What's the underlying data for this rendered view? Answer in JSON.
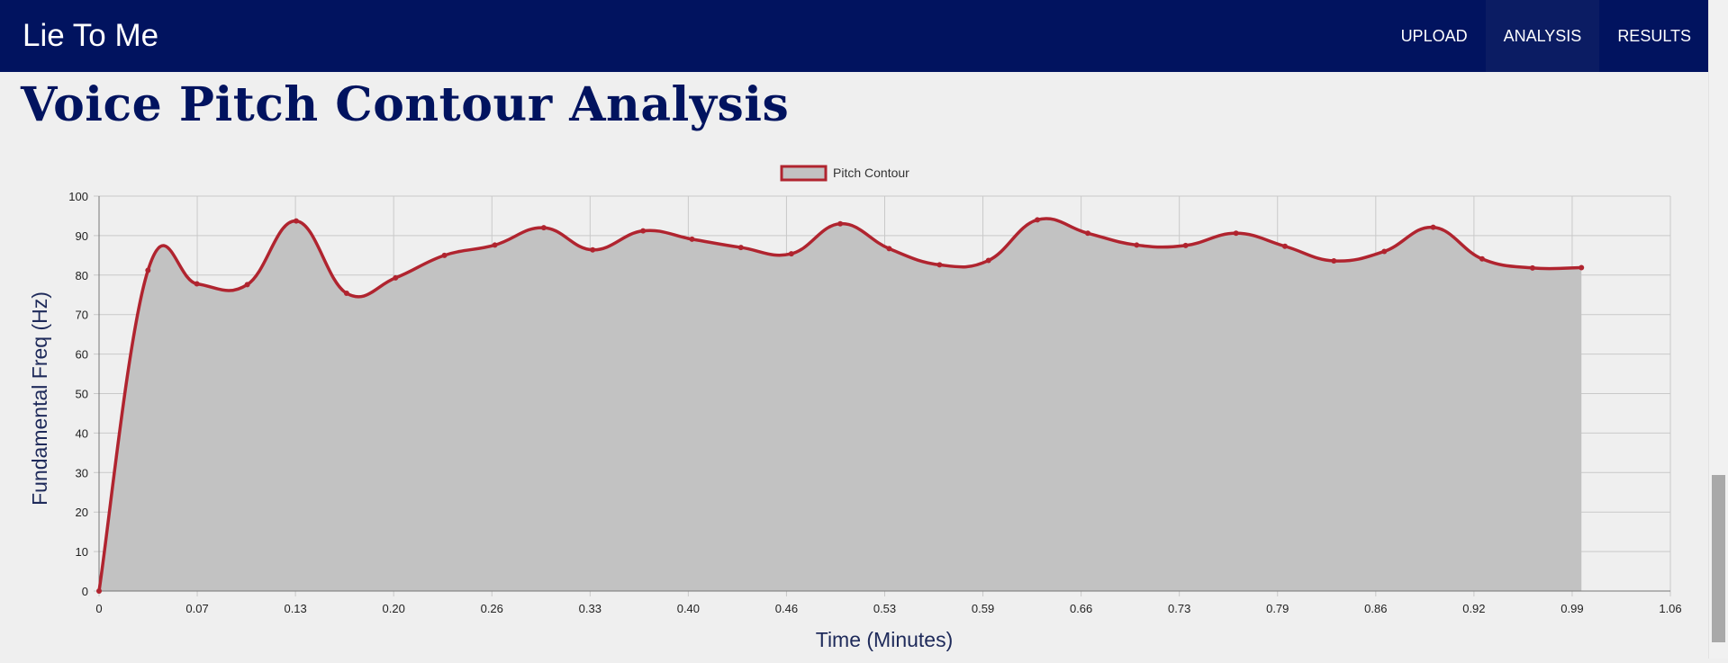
{
  "app": {
    "title": "Lie To Me"
  },
  "nav": {
    "items": [
      {
        "label": "UPLOAD",
        "active": false
      },
      {
        "label": "ANALYSIS",
        "active": true
      },
      {
        "label": "RESULTS",
        "active": false
      }
    ]
  },
  "page": {
    "title": "Voice Pitch Contour Analysis"
  },
  "colors": {
    "nav_bg": "#01135f",
    "title": "#01135f",
    "series_line": "#b0242f",
    "series_fill": "#c2c2c2"
  },
  "chart_data": {
    "type": "area",
    "legend": {
      "position": "top-center"
    },
    "xlabel": "Time (Minutes)",
    "ylabel": "Fundamental Freq (Hz)",
    "xlim": [
      0,
      1.06
    ],
    "ylim": [
      0,
      100
    ],
    "grid": true,
    "x_ticks": [
      "0",
      "0.07",
      "0.13",
      "0.20",
      "0.26",
      "0.33",
      "0.40",
      "0.46",
      "0.53",
      "0.59",
      "0.66",
      "0.73",
      "0.79",
      "0.86",
      "0.92",
      "0.99",
      "1.06"
    ],
    "y_ticks": [
      "0",
      "10",
      "20",
      "30",
      "40",
      "50",
      "60",
      "70",
      "80",
      "90",
      "100"
    ],
    "series": [
      {
        "name": "Pitch Contour",
        "x": [
          0,
          0.033,
          0.066,
          0.1,
          0.133,
          0.167,
          0.2,
          0.233,
          0.267,
          0.3,
          0.333,
          0.367,
          0.4,
          0.433,
          0.467,
          0.5,
          0.533,
          0.567,
          0.6,
          0.633,
          0.667,
          0.7,
          0.733,
          0.767,
          0.8,
          0.833,
          0.867,
          0.9,
          0.933,
          0.967,
          1.0
        ],
        "values": [
          0,
          81.2,
          77.8,
          77.6,
          93.7,
          75.4,
          79.3,
          85.0,
          87.6,
          92.0,
          86.4,
          91.2,
          89.1,
          87.0,
          85.4,
          93.0,
          86.7,
          82.6,
          83.7,
          94.0,
          90.6,
          87.6,
          87.5,
          90.6,
          87.3,
          83.6,
          86.0,
          92.1,
          84.1,
          81.8,
          81.9
        ]
      }
    ]
  }
}
